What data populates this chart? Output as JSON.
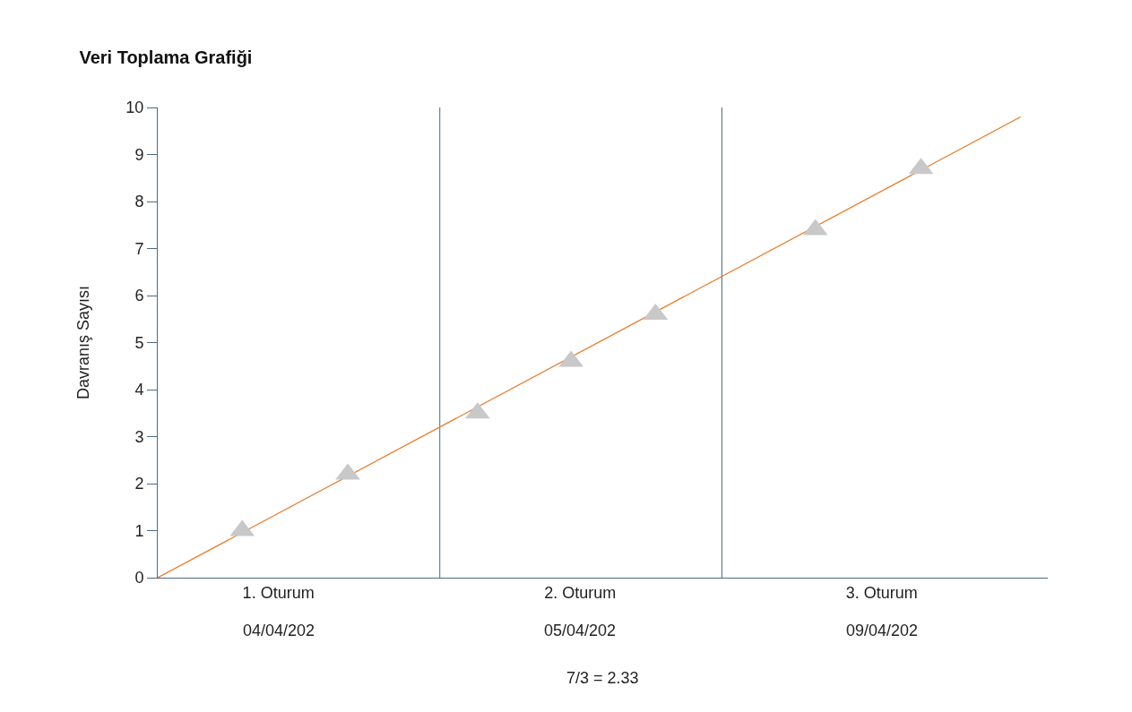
{
  "chart_data": {
    "type": "scatter",
    "title": "Veri Toplama Grafiği",
    "ylabel": "Davranış Sayısı",
    "xlim": [
      0.6,
      3.55
    ],
    "xticks": [
      {
        "value": 1,
        "label": "1. Oturum"
      },
      {
        "value": 2,
        "label": "2. Oturum"
      },
      {
        "value": 3,
        "label": "3. Oturum"
      }
    ],
    "ylim": [
      0,
      10
    ],
    "yticks": [
      0,
      1,
      2,
      3,
      4,
      5,
      6,
      7,
      8,
      9,
      10
    ],
    "grid": false,
    "series": [
      {
        "type": "line",
        "color": "#e87722",
        "x": [
          0.6,
          3.46
        ],
        "values": [
          0,
          9.8
        ],
        "line_style": "solid",
        "marker": "none"
      },
      {
        "color": "#c8c8c8",
        "x": [
          0.88,
          1.23,
          1.66,
          1.97,
          2.25,
          2.78,
          3.13
        ],
        "values": [
          1,
          2.2,
          3.5,
          4.6,
          5.6,
          7.4,
          8.7
        ],
        "marker": "triangle"
      }
    ],
    "ref_lines": [
      {
        "axis": "x",
        "value": 1.535,
        "color": "#4a6a85"
      },
      {
        "axis": "x",
        "value": 2.47,
        "color": "#4a6a85"
      }
    ],
    "annotations": [
      "04/04/202",
      "05/04/202",
      "09/04/202",
      "7/3 = 2.33"
    ]
  }
}
